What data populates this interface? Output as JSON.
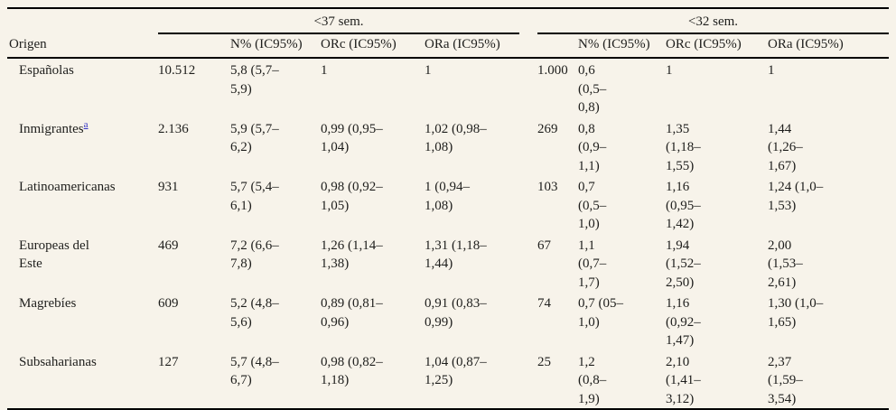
{
  "page": {
    "background_color": "#f7f3ea",
    "rule_color": "#000000",
    "text_color": "#1e1e1c",
    "footnote_link_color": "#3333c4"
  },
  "table": {
    "corner_label": "Origen",
    "group_headers": [
      {
        "label": "<37 sem."
      },
      {
        "label": "<32 sem."
      }
    ],
    "column_headers": {
      "g1_pct": "N% (IC95%)",
      "g1_orc": "ORc (IC95%)",
      "g1_ora": "ORa (IC95%)",
      "g2_pct": "N% (IC95%)",
      "g2_orc": "ORc (IC95%)",
      "g2_ora": "ORa (IC95%)"
    },
    "rows": [
      {
        "origin": "Españolas",
        "n_37": "10.512",
        "pct_37": "5,8 (5,7–\n5,9)",
        "orc_37": "1",
        "ora_37": "1",
        "n_32": "1.000",
        "pct_32": "0,6\n(0,5–\n0,8)",
        "orc_32": "1",
        "ora_32": "1"
      },
      {
        "origin": "Inmigrantes",
        "footnote_marker": "a",
        "n_37": "2.136",
        "pct_37": "5,9 (5,7–\n6,2)",
        "orc_37": "0,99 (0,95–\n1,04)",
        "ora_37": "1,02 (0,98–\n1,08)",
        "n_32": "269",
        "pct_32": "0,8\n(0,9–\n1,1)",
        "orc_32": "1,35\n(1,18–\n1,55)",
        "ora_32": "1,44\n(1,26–\n1,67)"
      },
      {
        "origin": "Latinoamericanas",
        "n_37": "931",
        "pct_37": "5,7 (5,4–\n6,1)",
        "orc_37": "0,98 (0,92–\n1,05)",
        "ora_37": "1 (0,94–\n1,08)",
        "n_32": "103",
        "pct_32": "0,7\n(0,5–\n1,0)",
        "orc_32": "1,16\n(0,95–\n1,42)",
        "ora_32": "1,24 (1,0–\n1,53)"
      },
      {
        "origin": "Europeas del\nEste",
        "n_37": "469",
        "pct_37": "7,2 (6,6–\n7,8)",
        "orc_37": "1,26 (1,14–\n1,38)",
        "ora_37": "1,31 (1,18–\n1,44)",
        "n_32": "67",
        "pct_32": "1,1\n(0,7–\n1,7)",
        "orc_32": "1,94\n(1,52–\n2,50)",
        "ora_32": "2,00\n(1,53–\n2,61)"
      },
      {
        "origin": "Magrebíes",
        "n_37": "609",
        "pct_37": "5,2 (4,8–\n5,6)",
        "orc_37": "0,89 (0,81–\n0,96)",
        "ora_37": "0,91 (0,83–\n0,99)",
        "n_32": "74",
        "pct_32": "0,7 (05–\n1,0)",
        "orc_32": "1,16\n(0,92–\n1,47)",
        "ora_32": "1,30 (1,0–\n1,65)"
      },
      {
        "origin": "Subsaharianas",
        "n_37": "127",
        "pct_37": "5,7 (4,8–\n6,7)",
        "orc_37": "0,98 (0,82–\n1,18)",
        "ora_37": "1,04 (0,87–\n1,25)",
        "n_32": "25",
        "pct_32": "1,2\n(0,8–\n1,9)",
        "orc_32": "2,10\n(1,41–\n3,12)",
        "ora_32": "2,37\n(1,59–\n3,54)"
      }
    ]
  }
}
